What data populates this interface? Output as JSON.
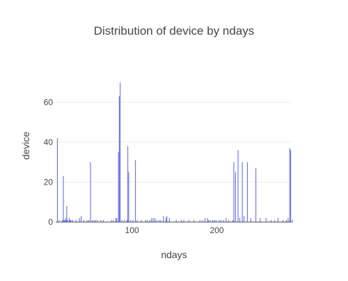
{
  "chart_data": {
    "type": "bar",
    "title": "Distribution of device by ndays",
    "xlabel": "ndays",
    "ylabel": "device",
    "xlim": [
      10,
      289
    ],
    "ylim": [
      0,
      73
    ],
    "x_ticks": [
      100,
      200
    ],
    "y_ticks": [
      0,
      20,
      40,
      60
    ],
    "grid": true,
    "bar_color": "#636efa",
    "series": [
      {
        "x": [
          12,
          14,
          18,
          19,
          20,
          21,
          22,
          23,
          24,
          26,
          27,
          28,
          30,
          34,
          38,
          40,
          43,
          47,
          49,
          51,
          53,
          55,
          57,
          59,
          63,
          66,
          76,
          78,
          81,
          82,
          84,
          85,
          86,
          88,
          91,
          94,
          95,
          96,
          98,
          101,
          104,
          106,
          111,
          116,
          118,
          121,
          123,
          125,
          127,
          129,
          132,
          134,
          137,
          140,
          141,
          144,
          152,
          158,
          161,
          167,
          173,
          180,
          183,
          186,
          189,
          190,
          192,
          195,
          197,
          199,
          203,
          205,
          208,
          211,
          214,
          219,
          220,
          222,
          225,
          227,
          230,
          232,
          236,
          240,
          246,
          251,
          258,
          264,
          268,
          272,
          278,
          282,
          284,
          286,
          287,
          289
        ],
        "y": [
          42,
          1,
          1,
          23,
          1,
          1,
          2,
          8,
          1,
          2,
          1,
          1,
          1,
          1,
          2,
          3,
          1,
          1,
          1,
          30,
          1,
          1,
          1,
          1,
          1,
          1,
          1,
          1,
          2,
          2,
          35,
          63,
          70,
          1,
          1,
          1,
          38,
          25,
          1,
          1,
          31,
          1,
          1,
          1,
          1,
          1,
          2,
          2,
          2,
          1,
          1,
          1,
          3,
          2,
          3,
          2,
          1,
          1,
          1,
          1,
          1,
          1,
          1,
          2,
          2,
          1,
          1,
          1,
          1,
          1,
          1,
          1,
          1,
          2,
          1,
          1,
          30,
          25,
          36,
          2,
          30,
          3,
          30,
          2,
          27,
          2,
          2,
          1,
          1,
          2,
          1,
          1,
          2,
          37,
          36,
          1
        ]
      }
    ]
  }
}
